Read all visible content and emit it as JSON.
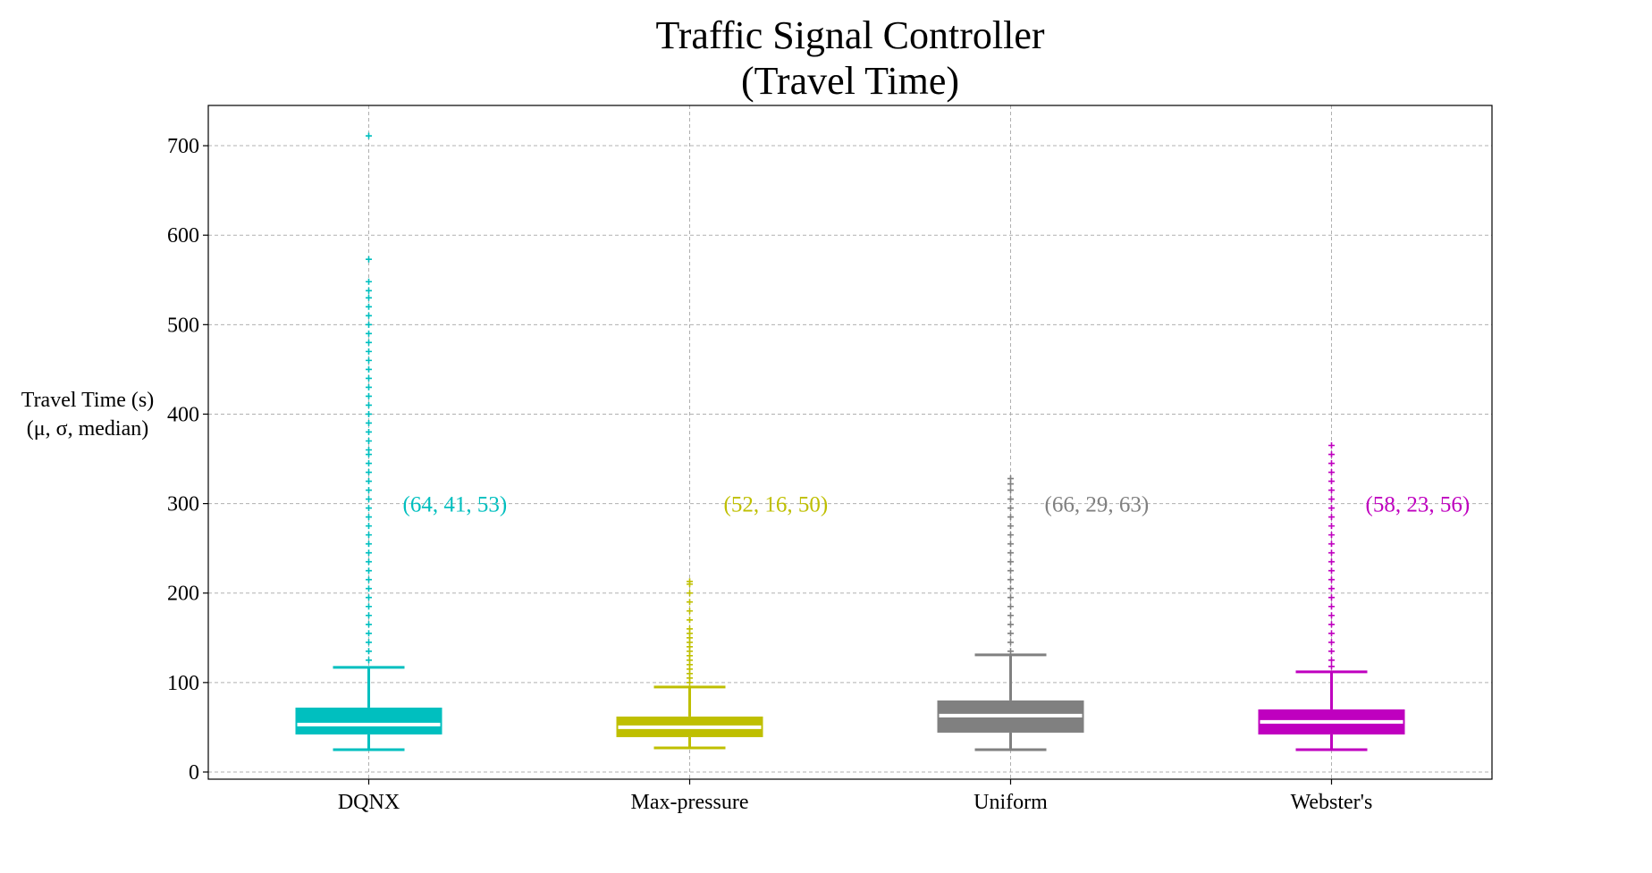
{
  "chart_data": {
    "type": "box",
    "title_lines": [
      "Traffic Signal Controller",
      "(Travel Time)"
    ],
    "ylabel_line1": "Travel Time (s)",
    "ylabel_line2": "(μ, σ, median)",
    "ylim": [
      -8,
      745
    ],
    "yticks": [
      0,
      100,
      200,
      300,
      400,
      500,
      600,
      700
    ],
    "grid": true,
    "categories": [
      "DQNX",
      "Max-pressure",
      "Uniform",
      "Webster's"
    ],
    "series": [
      {
        "color": "#00bfbf",
        "whisker_low": 25,
        "q1": 42,
        "median": 53,
        "q3": 72,
        "whisker_high": 117,
        "annotation": "(64, 41, 53)",
        "outliers": [
          125,
          135,
          145,
          155,
          165,
          175,
          185,
          195,
          205,
          215,
          225,
          235,
          245,
          255,
          265,
          275,
          285,
          295,
          305,
          315,
          325,
          335,
          345,
          355,
          360,
          370,
          380,
          390,
          400,
          410,
          420,
          430,
          440,
          450,
          460,
          470,
          480,
          490,
          500,
          510,
          520,
          530,
          538,
          548,
          573,
          711
        ]
      },
      {
        "color": "#bfbf00",
        "whisker_low": 27,
        "q1": 39,
        "median": 50,
        "q3": 62,
        "whisker_high": 95,
        "annotation": "(52, 16, 50)",
        "outliers": [
          100,
          105,
          110,
          115,
          120,
          125,
          130,
          135,
          140,
          145,
          150,
          155,
          160,
          170,
          180,
          190,
          200,
          210,
          213
        ]
      },
      {
        "color": "#808080",
        "whisker_low": 25,
        "q1": 44,
        "median": 63,
        "q3": 80,
        "whisker_high": 131,
        "annotation": "(66, 29, 63)",
        "outliers": [
          135,
          145,
          155,
          165,
          175,
          185,
          195,
          205,
          215,
          225,
          235,
          245,
          255,
          265,
          275,
          285,
          295,
          305,
          315,
          322,
          328
        ]
      },
      {
        "color": "#bf00bf",
        "whisker_low": 25,
        "q1": 42,
        "median": 56,
        "q3": 70,
        "whisker_high": 112,
        "annotation": "(58, 23, 56)",
        "outliers": [
          118,
          125,
          135,
          145,
          155,
          165,
          175,
          185,
          195,
          205,
          215,
          225,
          235,
          245,
          255,
          265,
          275,
          285,
          295,
          305,
          315,
          325,
          335,
          345,
          355,
          365
        ]
      }
    ]
  }
}
